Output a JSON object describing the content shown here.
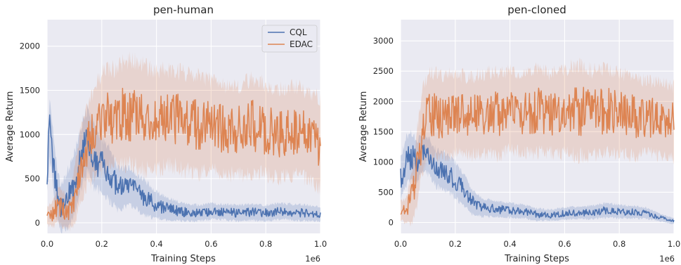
{
  "colors": {
    "cql": "#4c72b0",
    "edac": "#dd8452",
    "background": "#eaeaf2",
    "grid": "#ffffff"
  },
  "chart_data": [
    {
      "type": "line",
      "title": "pen-human",
      "xlabel": "Training Steps",
      "ylabel": "Average Return",
      "x_offset_label": "1e6",
      "xlim": [
        0,
        1.0
      ],
      "ylim": [
        -120,
        2300
      ],
      "xticks": [
        "0.0",
        "0.2",
        "0.4",
        "0.6",
        "0.8",
        "1.0"
      ],
      "yticks": [
        "0",
        "500",
        "1000",
        "1500",
        "2000"
      ],
      "grid": true,
      "legend": "top-right",
      "series": [
        {
          "name": "CQL",
          "x": [
            0.0,
            0.01,
            0.03,
            0.05,
            0.07,
            0.09,
            0.11,
            0.13,
            0.15,
            0.17,
            0.2,
            0.23,
            0.26,
            0.3,
            0.35,
            0.4,
            0.45,
            0.5,
            0.55,
            0.6,
            0.65,
            0.7,
            0.75,
            0.8,
            0.85,
            0.9,
            0.95,
            1.0
          ],
          "values": [
            600,
            1100,
            450,
            150,
            250,
            350,
            550,
            800,
            950,
            750,
            650,
            550,
            380,
            420,
            300,
            200,
            150,
            120,
            110,
            130,
            120,
            110,
            120,
            110,
            130,
            120,
            110,
            100
          ],
          "band": [
            300,
            350,
            300,
            250,
            300,
            350,
            350,
            350,
            350,
            350,
            300,
            300,
            250,
            200,
            200,
            150,
            120,
            100,
            90,
            90,
            90,
            90,
            90,
            90,
            90,
            90,
            90,
            80
          ]
        },
        {
          "name": "EDAC",
          "x": [
            0.0,
            0.02,
            0.04,
            0.06,
            0.08,
            0.1,
            0.12,
            0.14,
            0.17,
            0.2,
            0.25,
            0.3,
            0.35,
            0.4,
            0.45,
            0.5,
            0.55,
            0.6,
            0.65,
            0.7,
            0.75,
            0.8,
            0.85,
            0.9,
            0.95,
            1.0
          ],
          "values": [
            80,
            100,
            200,
            150,
            120,
            300,
            600,
            850,
            1000,
            1150,
            1200,
            1250,
            1200,
            1150,
            1200,
            1150,
            1100,
            1100,
            1050,
            1050,
            1100,
            1050,
            1000,
            1050,
            1000,
            900
          ],
          "band": [
            100,
            150,
            200,
            200,
            200,
            300,
            400,
            450,
            500,
            550,
            550,
            600,
            600,
            550,
            550,
            550,
            550,
            500,
            500,
            500,
            550,
            500,
            500,
            500,
            500,
            500
          ]
        }
      ]
    },
    {
      "type": "line",
      "title": "pen-cloned",
      "xlabel": "Training Steps",
      "ylabel": "Average Return",
      "x_offset_label": "1e6",
      "xlim": [
        0,
        1.0
      ],
      "ylim": [
        -180,
        3350
      ],
      "xticks": [
        "0.0",
        "0.2",
        "0.4",
        "0.6",
        "0.8",
        "1.0"
      ],
      "yticks": [
        "0",
        "500",
        "1000",
        "1500",
        "2000",
        "2500",
        "3000"
      ],
      "grid": true,
      "legend": "none",
      "series": [
        {
          "name": "CQL",
          "x": [
            0.0,
            0.02,
            0.04,
            0.06,
            0.08,
            0.1,
            0.13,
            0.16,
            0.2,
            0.23,
            0.26,
            0.3,
            0.35,
            0.4,
            0.45,
            0.5,
            0.55,
            0.6,
            0.65,
            0.7,
            0.75,
            0.8,
            0.85,
            0.9,
            0.95,
            1.0
          ],
          "values": [
            700,
            1000,
            1100,
            1000,
            1150,
            1100,
            900,
            850,
            700,
            550,
            350,
            250,
            220,
            200,
            180,
            130,
            120,
            150,
            160,
            170,
            200,
            180,
            170,
            150,
            80,
            20
          ],
          "band": [
            350,
            400,
            400,
            350,
            300,
            300,
            300,
            300,
            300,
            250,
            200,
            150,
            130,
            120,
            110,
            100,
            90,
            100,
            100,
            110,
            120,
            110,
            100,
            90,
            60,
            50
          ]
        },
        {
          "name": "EDAC",
          "x": [
            0.0,
            0.02,
            0.04,
            0.06,
            0.08,
            0.1,
            0.15,
            0.2,
            0.25,
            0.3,
            0.35,
            0.4,
            0.45,
            0.5,
            0.55,
            0.6,
            0.65,
            0.7,
            0.75,
            0.8,
            0.85,
            0.9,
            0.95,
            1.0
          ],
          "values": [
            200,
            180,
            400,
            900,
            1500,
            1750,
            1750,
            1800,
            1750,
            1800,
            1800,
            1850,
            1800,
            1850,
            1800,
            1850,
            1850,
            1800,
            1850,
            1800,
            1750,
            1750,
            1700,
            1650
          ],
          "band": [
            150,
            200,
            400,
            600,
            700,
            700,
            700,
            650,
            650,
            650,
            700,
            650,
            650,
            700,
            650,
            700,
            750,
            700,
            700,
            650,
            650,
            600,
            600,
            600
          ]
        }
      ]
    }
  ]
}
